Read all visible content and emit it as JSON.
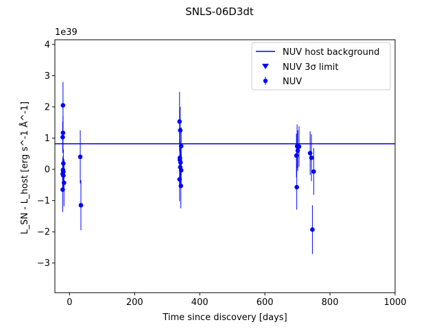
{
  "chart_data": {
    "type": "scatter",
    "title": "SNLS-06D3dt",
    "xlabel": "Time since discovery [days]",
    "ylabel": "L_SN - L_host [erg s^-1 Å^-1]",
    "y_scale_label": "1e39",
    "xlim": [
      -45,
      1000
    ],
    "ylim": [
      -3.95,
      4.15
    ],
    "xticks": [
      0,
      200,
      400,
      600,
      800,
      1000
    ],
    "xtick_labels": [
      "0",
      "200",
      "400",
      "600",
      "800",
      "1000"
    ],
    "yticks": [
      -3,
      -2,
      -1,
      0,
      1,
      2,
      3,
      4
    ],
    "ytick_labels": [
      "−3",
      "−2",
      "−1",
      "0",
      "1",
      "2",
      "3",
      "4"
    ],
    "grid": false,
    "legend_location": "upper right",
    "legend": [
      "NUV host background",
      "NUV 3σ limit",
      "NUV"
    ],
    "color": "#0000ff",
    "host_background": 0.82,
    "limits": [],
    "series": [
      {
        "name": "NUV",
        "points": [
          {
            "x": -20,
            "y": 2.05,
            "err": 0.75
          },
          {
            "x": -20,
            "y": 1.17,
            "err": 0.55
          },
          {
            "x": -21,
            "y": 1.03,
            "err": 0.5
          },
          {
            "x": -19,
            "y": 0.19,
            "err": 0.45
          },
          {
            "x": -20,
            "y": -0.02,
            "err": 0.45
          },
          {
            "x": -19,
            "y": -0.08,
            "err": 0.45
          },
          {
            "x": -21,
            "y": -0.15,
            "err": 0.5
          },
          {
            "x": -19,
            "y": -0.2,
            "err": 0.5
          },
          {
            "x": -17,
            "y": -0.43,
            "err": 0.75
          },
          {
            "x": -21,
            "y": -0.65,
            "err": 0.72
          },
          {
            "x": 33,
            "y": 0.4,
            "err": 0.85
          },
          {
            "x": 35,
            "y": -1.15,
            "err": 0.8
          },
          {
            "x": 338,
            "y": 1.53,
            "err": 0.95
          },
          {
            "x": 340,
            "y": 1.25,
            "err": 0.75
          },
          {
            "x": 339,
            "y": 0.37,
            "err": 0.6
          },
          {
            "x": 339,
            "y": 0.3,
            "err": 0.55
          },
          {
            "x": 341,
            "y": 0.22,
            "err": 0.6
          },
          {
            "x": 340,
            "y": 0.07,
            "err": 0.6
          },
          {
            "x": 343,
            "y": -0.03,
            "err": 0.55
          },
          {
            "x": 338,
            "y": -0.32,
            "err": 0.7
          },
          {
            "x": 342,
            "y": -0.53,
            "err": 0.72
          },
          {
            "x": 343,
            "y": 0.74,
            "err": 0.6
          },
          {
            "x": 697,
            "y": 0.44,
            "err": 0.7
          },
          {
            "x": 699,
            "y": 0.74,
            "err": 0.7
          },
          {
            "x": 701,
            "y": 0.6,
            "err": 0.65
          },
          {
            "x": 705,
            "y": 0.73,
            "err": 0.65
          },
          {
            "x": 698,
            "y": -0.57,
            "err": 0.72
          },
          {
            "x": 739,
            "y": 0.52,
            "err": 0.7
          },
          {
            "x": 743,
            "y": 0.37,
            "err": 0.75
          },
          {
            "x": 750,
            "y": -0.07,
            "err": 0.75
          },
          {
            "x": 746,
            "y": -1.93,
            "err": 0.78
          }
        ]
      }
    ]
  }
}
